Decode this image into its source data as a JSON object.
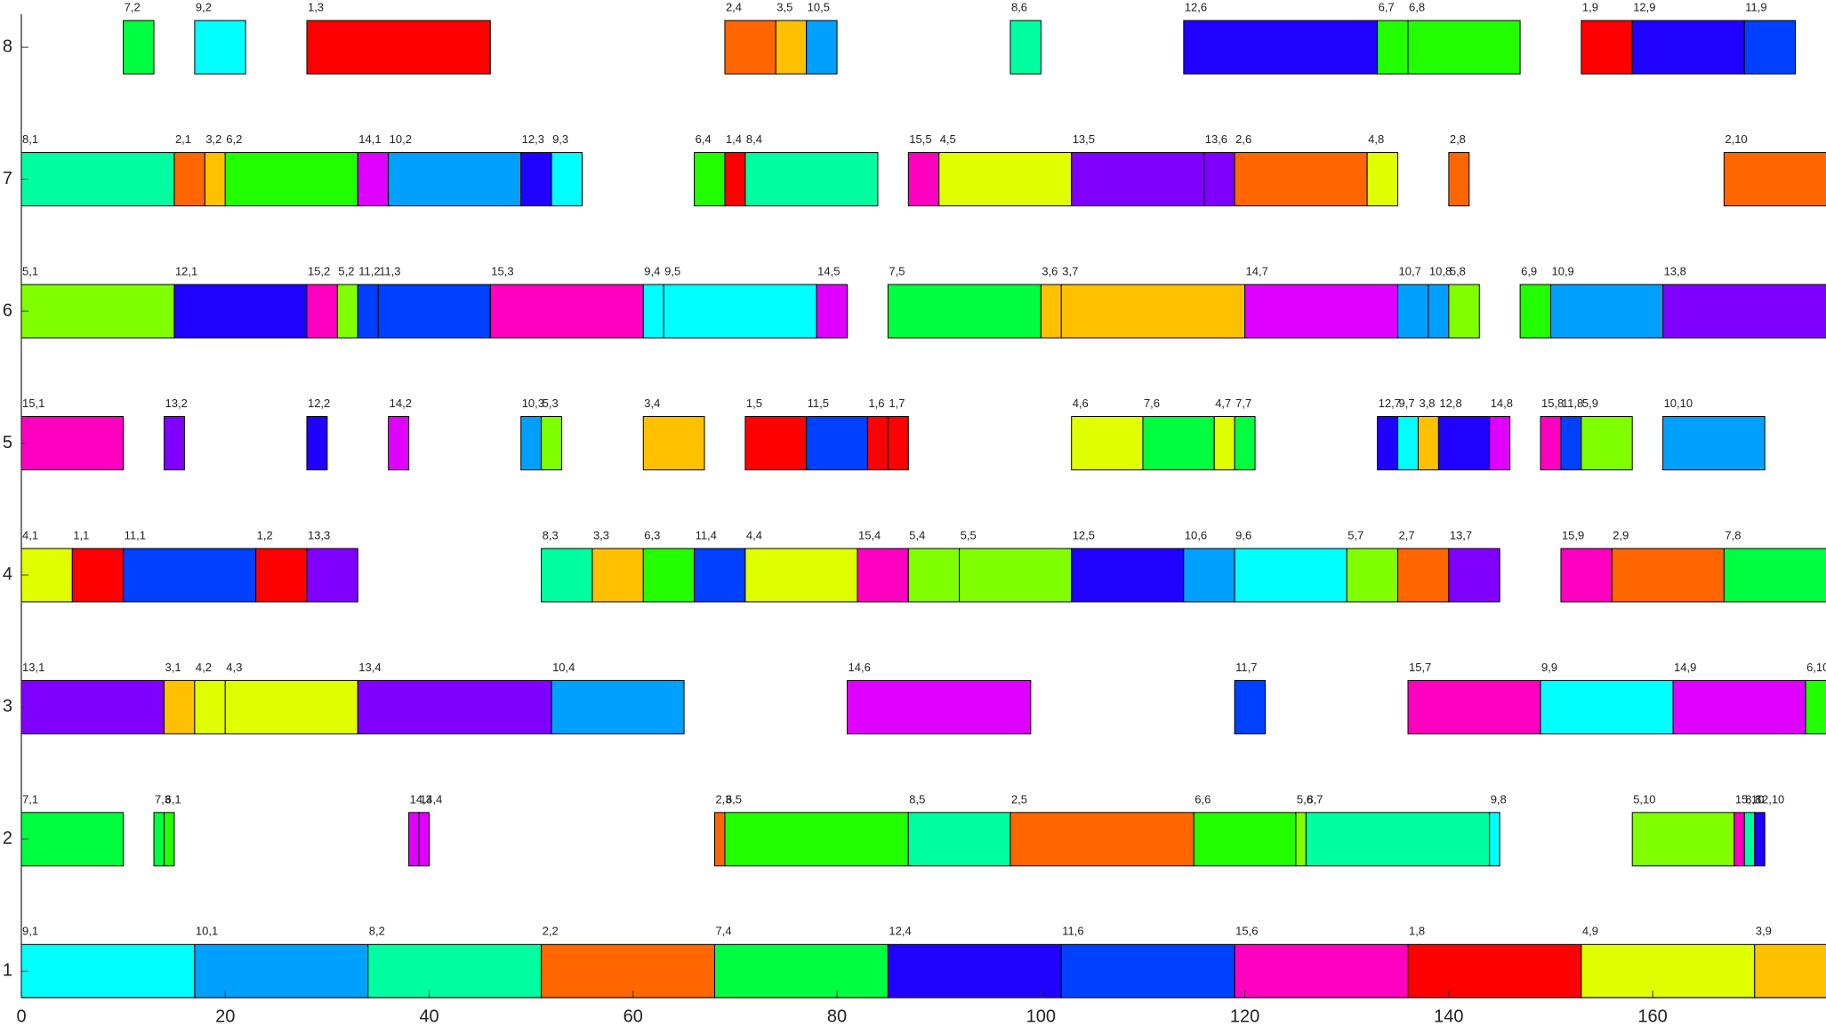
{
  "chart_data": {
    "type": "gantt",
    "xlim": [
      0,
      177
    ],
    "xticks": [
      0,
      20,
      40,
      60,
      80,
      100,
      120,
      140,
      160
    ],
    "ylim": [
      0.8,
      8.25
    ],
    "yticks": [
      1,
      2,
      3,
      4,
      5,
      6,
      7,
      8
    ],
    "tasks": [
      {
        "machine": 8,
        "start": 10,
        "end": 13,
        "label": "7,2",
        "color": "#00ff40"
      },
      {
        "machine": 8,
        "start": 17,
        "end": 22,
        "label": "9,2",
        "color": "#00ffff"
      },
      {
        "machine": 8,
        "start": 28,
        "end": 46,
        "label": "1,3",
        "color": "#ff0000"
      },
      {
        "machine": 8,
        "start": 69,
        "end": 74,
        "label": "2,4",
        "color": "#ff6600"
      },
      {
        "machine": 8,
        "start": 74,
        "end": 77,
        "label": "3,5",
        "color": "#ffc000"
      },
      {
        "machine": 8,
        "start": 77,
        "end": 80,
        "label": "10,5",
        "color": "#00a0ff"
      },
      {
        "machine": 8,
        "start": 97,
        "end": 100,
        "label": "8,6",
        "color": "#00ffa0"
      },
      {
        "machine": 8,
        "start": 114,
        "end": 133,
        "label": "12,6",
        "color": "#2000ff"
      },
      {
        "machine": 8,
        "start": 133,
        "end": 136,
        "label": "6,7",
        "color": "#22ff00"
      },
      {
        "machine": 8,
        "start": 136,
        "end": 147,
        "label": "6,8",
        "color": "#22ff00"
      },
      {
        "machine": 8,
        "start": 153,
        "end": 158,
        "label": "1,9",
        "color": "#ff0000"
      },
      {
        "machine": 8,
        "start": 158,
        "end": 169,
        "label": "12,9",
        "color": "#2000ff"
      },
      {
        "machine": 8,
        "start": 169,
        "end": 174,
        "label": "11,9",
        "color": "#0040ff"
      },
      {
        "machine": 7,
        "start": 0,
        "end": 15,
        "label": "8,1",
        "color": "#00ffa0"
      },
      {
        "machine": 7,
        "start": 15,
        "end": 18,
        "label": "2,1",
        "color": "#ff6600"
      },
      {
        "machine": 7,
        "start": 18,
        "end": 20,
        "label": "3,2",
        "color": "#ffc000"
      },
      {
        "machine": 7,
        "start": 20,
        "end": 33,
        "label": "6,2",
        "color": "#22ff00"
      },
      {
        "machine": 7,
        "start": 33,
        "end": 36,
        "label": "14,1",
        "color": "#e000ff"
      },
      {
        "machine": 7,
        "start": 36,
        "end": 49,
        "label": "10,2",
        "color": "#00a0ff"
      },
      {
        "machine": 7,
        "start": 49,
        "end": 52,
        "label": "12,3",
        "color": "#2000ff"
      },
      {
        "machine": 7,
        "start": 52,
        "end": 55,
        "label": "9,3",
        "color": "#00ffff"
      },
      {
        "machine": 7,
        "start": 66,
        "end": 69,
        "label": "6,4",
        "color": "#22ff00"
      },
      {
        "machine": 7,
        "start": 69,
        "end": 71,
        "label": "1,4",
        "color": "#ff0000"
      },
      {
        "machine": 7,
        "start": 71,
        "end": 84,
        "label": "8,4",
        "color": "#00ffa0"
      },
      {
        "machine": 7,
        "start": 87,
        "end": 90,
        "label": "15,5",
        "color": "#ff00c0"
      },
      {
        "machine": 7,
        "start": 90,
        "end": 103,
        "label": "4,5",
        "color": "#e0ff00"
      },
      {
        "machine": 7,
        "start": 103,
        "end": 116,
        "label": "13,5",
        "color": "#8000ff"
      },
      {
        "machine": 7,
        "start": 116,
        "end": 119,
        "label": "13,6",
        "color": "#8000ff"
      },
      {
        "machine": 7,
        "start": 119,
        "end": 132,
        "label": "2,6",
        "color": "#ff6600"
      },
      {
        "machine": 7,
        "start": 132,
        "end": 135,
        "label": "4,8",
        "color": "#e0ff00"
      },
      {
        "machine": 7,
        "start": 140,
        "end": 142,
        "label": "2,8",
        "color": "#ff6600"
      },
      {
        "machine": 7,
        "start": 167,
        "end": 180,
        "label": "2,10",
        "color": "#ff6600"
      },
      {
        "machine": 6,
        "start": 0,
        "end": 15,
        "label": "5,1",
        "color": "#80ff00"
      },
      {
        "machine": 6,
        "start": 15,
        "end": 28,
        "label": "12,1",
        "color": "#2000ff"
      },
      {
        "machine": 6,
        "start": 28,
        "end": 31,
        "label": "15,2",
        "color": "#ff00c0"
      },
      {
        "machine": 6,
        "start": 31,
        "end": 33,
        "label": "5,2",
        "color": "#80ff00"
      },
      {
        "machine": 6,
        "start": 33,
        "end": 35,
        "label": "11,2",
        "color": "#0040ff"
      },
      {
        "machine": 6,
        "start": 35,
        "end": 46,
        "label": "11,3",
        "color": "#0040ff"
      },
      {
        "machine": 6,
        "start": 46,
        "end": 61,
        "label": "15,3",
        "color": "#ff00c0"
      },
      {
        "machine": 6,
        "start": 61,
        "end": 63,
        "label": "9,4",
        "color": "#00ffff"
      },
      {
        "machine": 6,
        "start": 63,
        "end": 78,
        "label": "9,5",
        "color": "#00ffff"
      },
      {
        "machine": 6,
        "start": 78,
        "end": 81,
        "label": "14,5",
        "color": "#e000ff"
      },
      {
        "machine": 6,
        "start": 85,
        "end": 100,
        "label": "7,5",
        "color": "#00ff40"
      },
      {
        "machine": 6,
        "start": 100,
        "end": 102,
        "label": "3,6",
        "color": "#ffc000"
      },
      {
        "machine": 6,
        "start": 102,
        "end": 120,
        "label": "3,7",
        "color": "#ffc000"
      },
      {
        "machine": 6,
        "start": 120,
        "end": 135,
        "label": "14,7",
        "color": "#e000ff"
      },
      {
        "machine": 6,
        "start": 135,
        "end": 138,
        "label": "10,7",
        "color": "#00a0ff"
      },
      {
        "machine": 6,
        "start": 138,
        "end": 140,
        "label": "10,8",
        "color": "#00a0ff"
      },
      {
        "machine": 6,
        "start": 140,
        "end": 143,
        "label": "5,8",
        "color": "#80ff00"
      },
      {
        "machine": 6,
        "start": 147,
        "end": 150,
        "label": "6,9",
        "color": "#22ff00"
      },
      {
        "machine": 6,
        "start": 150,
        "end": 161,
        "label": "10,9",
        "color": "#00a0ff"
      },
      {
        "machine": 6,
        "start": 161,
        "end": 180,
        "label": "13,8",
        "color": "#8000ff"
      },
      {
        "machine": 5,
        "start": 0,
        "end": 10,
        "label": "15,1",
        "color": "#ff00c0"
      },
      {
        "machine": 5,
        "start": 14,
        "end": 16,
        "label": "13,2",
        "color": "#8000ff"
      },
      {
        "machine": 5,
        "start": 28,
        "end": 30,
        "label": "12,2",
        "color": "#2000ff"
      },
      {
        "machine": 5,
        "start": 36,
        "end": 38,
        "label": "14,2",
        "color": "#e000ff"
      },
      {
        "machine": 5,
        "start": 49,
        "end": 51,
        "label": "10,3",
        "color": "#00a0ff"
      },
      {
        "machine": 5,
        "start": 51,
        "end": 53,
        "label": "5,3",
        "color": "#80ff00"
      },
      {
        "machine": 5,
        "start": 61,
        "end": 67,
        "label": "3,4",
        "color": "#ffc000"
      },
      {
        "machine": 5,
        "start": 71,
        "end": 77,
        "label": "1,5",
        "color": "#ff0000"
      },
      {
        "machine": 5,
        "start": 77,
        "end": 83,
        "label": "11,5",
        "color": "#0040ff"
      },
      {
        "machine": 5,
        "start": 83,
        "end": 85,
        "label": "1,6",
        "color": "#ff0000"
      },
      {
        "machine": 5,
        "start": 85,
        "end": 87,
        "label": "1,7",
        "color": "#ff0000"
      },
      {
        "machine": 5,
        "start": 103,
        "end": 110,
        "label": "4,6",
        "color": "#e0ff00"
      },
      {
        "machine": 5,
        "start": 110,
        "end": 117,
        "label": "7,6",
        "color": "#00ff40"
      },
      {
        "machine": 5,
        "start": 117,
        "end": 119,
        "label": "4,7",
        "color": "#e0ff00"
      },
      {
        "machine": 5,
        "start": 119,
        "end": 121,
        "label": "7,7",
        "color": "#00ff40"
      },
      {
        "machine": 5,
        "start": 133,
        "end": 135,
        "label": "12,7",
        "color": "#2000ff"
      },
      {
        "machine": 5,
        "start": 135,
        "end": 137,
        "label": "9,7",
        "color": "#00ffff"
      },
      {
        "machine": 5,
        "start": 137,
        "end": 139,
        "label": "3,8",
        "color": "#ffc000"
      },
      {
        "machine": 5,
        "start": 139,
        "end": 144,
        "label": "12,8",
        "color": "#2000ff"
      },
      {
        "machine": 5,
        "start": 144,
        "end": 146,
        "label": "14,8",
        "color": "#e000ff"
      },
      {
        "machine": 5,
        "start": 149,
        "end": 151,
        "label": "15,8",
        "color": "#ff00c0"
      },
      {
        "machine": 5,
        "start": 151,
        "end": 153,
        "label": "11,8",
        "color": "#0040ff"
      },
      {
        "machine": 5,
        "start": 153,
        "end": 158,
        "label": "5,9",
        "color": "#80ff00"
      },
      {
        "machine": 5,
        "start": 161,
        "end": 171,
        "label": "10,10",
        "color": "#00a0ff"
      },
      {
        "machine": 4,
        "start": 0,
        "end": 5,
        "label": "4,1",
        "color": "#e0ff00"
      },
      {
        "machine": 4,
        "start": 5,
        "end": 10,
        "label": "1,1",
        "color": "#ff0000"
      },
      {
        "machine": 4,
        "start": 10,
        "end": 23,
        "label": "11,1",
        "color": "#0040ff"
      },
      {
        "machine": 4,
        "start": 23,
        "end": 28,
        "label": "1,2",
        "color": "#ff0000"
      },
      {
        "machine": 4,
        "start": 28,
        "end": 33,
        "label": "13,3",
        "color": "#8000ff"
      },
      {
        "machine": 4,
        "start": 51,
        "end": 56,
        "label": "8,3",
        "color": "#00ffa0"
      },
      {
        "machine": 4,
        "start": 56,
        "end": 61,
        "label": "3,3",
        "color": "#ffc000"
      },
      {
        "machine": 4,
        "start": 61,
        "end": 66,
        "label": "6,3",
        "color": "#22ff00"
      },
      {
        "machine": 4,
        "start": 66,
        "end": 71,
        "label": "11,4",
        "color": "#0040ff"
      },
      {
        "machine": 4,
        "start": 71,
        "end": 82,
        "label": "4,4",
        "color": "#e0ff00"
      },
      {
        "machine": 4,
        "start": 82,
        "end": 87,
        "label": "15,4",
        "color": "#ff00c0"
      },
      {
        "machine": 4,
        "start": 87,
        "end": 92,
        "label": "5,4",
        "color": "#80ff00"
      },
      {
        "machine": 4,
        "start": 92,
        "end": 103,
        "label": "5,5",
        "color": "#80ff00"
      },
      {
        "machine": 4,
        "start": 103,
        "end": 114,
        "label": "12,5",
        "color": "#2000ff"
      },
      {
        "machine": 4,
        "start": 114,
        "end": 119,
        "label": "10,6",
        "color": "#00a0ff"
      },
      {
        "machine": 4,
        "start": 119,
        "end": 130,
        "label": "9,6",
        "color": "#00ffff"
      },
      {
        "machine": 4,
        "start": 130,
        "end": 135,
        "label": "5,7",
        "color": "#80ff00"
      },
      {
        "machine": 4,
        "start": 135,
        "end": 140,
        "label": "2,7",
        "color": "#ff6600"
      },
      {
        "machine": 4,
        "start": 140,
        "end": 145,
        "label": "13,7",
        "color": "#8000ff"
      },
      {
        "machine": 4,
        "start": 151,
        "end": 156,
        "label": "15,9",
        "color": "#ff00c0"
      },
      {
        "machine": 4,
        "start": 156,
        "end": 167,
        "label": "2,9",
        "color": "#ff6600"
      },
      {
        "machine": 4,
        "start": 167,
        "end": 180,
        "label": "7,8",
        "color": "#00ff40"
      },
      {
        "machine": 3,
        "start": 0,
        "end": 14,
        "label": "13,1",
        "color": "#8000ff"
      },
      {
        "machine": 3,
        "start": 14,
        "end": 17,
        "label": "3,1",
        "color": "#ffc000"
      },
      {
        "machine": 3,
        "start": 17,
        "end": 20,
        "label": "4,2",
        "color": "#e0ff00"
      },
      {
        "machine": 3,
        "start": 20,
        "end": 33,
        "label": "4,3",
        "color": "#e0ff00"
      },
      {
        "machine": 3,
        "start": 33,
        "end": 52,
        "label": "13,4",
        "color": "#8000ff"
      },
      {
        "machine": 3,
        "start": 52,
        "end": 65,
        "label": "10,4",
        "color": "#00a0ff"
      },
      {
        "machine": 3,
        "start": 81,
        "end": 99,
        "label": "14,6",
        "color": "#e000ff"
      },
      {
        "machine": 3,
        "start": 119,
        "end": 122,
        "label": "11,7",
        "color": "#0040ff"
      },
      {
        "machine": 3,
        "start": 136,
        "end": 149,
        "label": "15,7",
        "color": "#ff00c0"
      },
      {
        "machine": 3,
        "start": 149,
        "end": 162,
        "label": "9,9",
        "color": "#00ffff"
      },
      {
        "machine": 3,
        "start": 162,
        "end": 175,
        "label": "14,9",
        "color": "#e000ff"
      },
      {
        "machine": 3,
        "start": 175,
        "end": 180,
        "label": "6,10",
        "color": "#22ff00"
      },
      {
        "machine": 2,
        "start": 0,
        "end": 10,
        "label": "7,1",
        "color": "#00ff40"
      },
      {
        "machine": 2,
        "start": 13,
        "end": 14,
        "label": "7,3",
        "color": "#00ff40"
      },
      {
        "machine": 2,
        "start": 14,
        "end": 15,
        "label": "6,1",
        "color": "#22ff00"
      },
      {
        "machine": 2,
        "start": 38,
        "end": 39,
        "label": "14,3",
        "color": "#e000ff"
      },
      {
        "machine": 2,
        "start": 39,
        "end": 40,
        "label": "14,4",
        "color": "#e000ff"
      },
      {
        "machine": 2,
        "start": 68,
        "end": 69,
        "label": "2,3",
        "color": "#ff6600"
      },
      {
        "machine": 2,
        "start": 69,
        "end": 87,
        "label": "6,5",
        "color": "#22ff00"
      },
      {
        "machine": 2,
        "start": 87,
        "end": 97,
        "label": "8,5",
        "color": "#00ffa0"
      },
      {
        "machine": 2,
        "start": 97,
        "end": 115,
        "label": "2,5",
        "color": "#ff6600"
      },
      {
        "machine": 2,
        "start": 115,
        "end": 125,
        "label": "6,6",
        "color": "#22ff00"
      },
      {
        "machine": 2,
        "start": 125,
        "end": 126,
        "label": "5,6",
        "color": "#80ff00"
      },
      {
        "machine": 2,
        "start": 126,
        "end": 144,
        "label": "8,7",
        "color": "#00ffa0"
      },
      {
        "machine": 2,
        "start": 144,
        "end": 145,
        "label": "9,8",
        "color": "#00ffff"
      },
      {
        "machine": 2,
        "start": 158,
        "end": 168,
        "label": "5,10",
        "color": "#80ff00"
      },
      {
        "machine": 2,
        "start": 168,
        "end": 169,
        "label": "15,10",
        "color": "#ff00c0"
      },
      {
        "machine": 2,
        "start": 169,
        "end": 170,
        "label": "8,8",
        "color": "#00ffa0"
      },
      {
        "machine": 2,
        "start": 170,
        "end": 171,
        "label": "12,10",
        "color": "#2000ff"
      },
      {
        "machine": 1,
        "start": 0,
        "end": 17,
        "label": "9,1",
        "color": "#00ffff"
      },
      {
        "machine": 1,
        "start": 17,
        "end": 34,
        "label": "10,1",
        "color": "#00a0ff"
      },
      {
        "machine": 1,
        "start": 34,
        "end": 51,
        "label": "8,2",
        "color": "#00ffa0"
      },
      {
        "machine": 1,
        "start": 51,
        "end": 68,
        "label": "2,2",
        "color": "#ff6600"
      },
      {
        "machine": 1,
        "start": 68,
        "end": 85,
        "label": "7,4",
        "color": "#00ff40"
      },
      {
        "machine": 1,
        "start": 85,
        "end": 102,
        "label": "12,4",
        "color": "#2000ff"
      },
      {
        "machine": 1,
        "start": 102,
        "end": 119,
        "label": "11,6",
        "color": "#0040ff"
      },
      {
        "machine": 1,
        "start": 119,
        "end": 136,
        "label": "15,6",
        "color": "#ff00c0"
      },
      {
        "machine": 1,
        "start": 136,
        "end": 153,
        "label": "1,8",
        "color": "#ff0000"
      },
      {
        "machine": 1,
        "start": 153,
        "end": 170,
        "label": "4,9",
        "color": "#e0ff00"
      },
      {
        "machine": 1,
        "start": 170,
        "end": 187,
        "label": "3,9",
        "color": "#ffc000"
      }
    ]
  }
}
